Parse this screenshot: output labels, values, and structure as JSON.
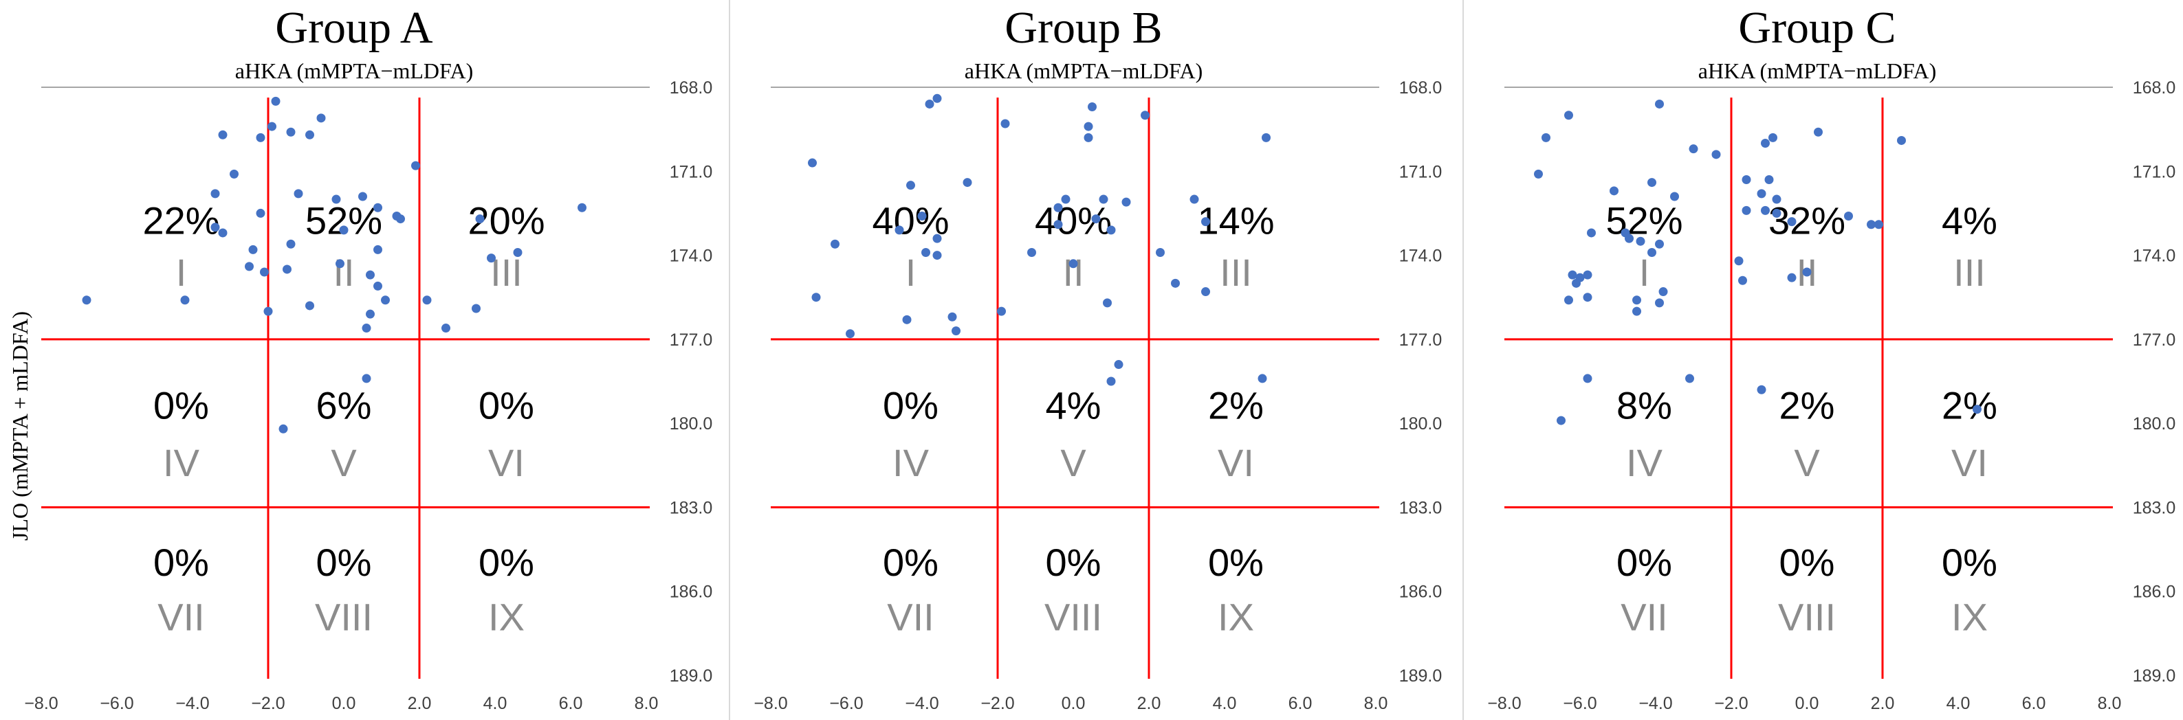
{
  "figure": {
    "ylabel": "JLO (mMPTA + mLDFA)"
  },
  "chart_data": [
    {
      "type": "scatter",
      "title": "Group A",
      "xlabel": "aHKA (mMPTA−mLDFA)",
      "xlim": [
        -8,
        8
      ],
      "ylim": [
        168,
        189
      ],
      "x_ticks": [
        "−8.0",
        "−6.0",
        "−4.0",
        "−2.0",
        "0.0",
        "2.0",
        "4.0",
        "6.0",
        "8.0"
      ],
      "y_ticks": [
        "168.0",
        "171.0",
        "174.0",
        "177.0",
        "180.0",
        "183.0",
        "186.0",
        "189.0"
      ],
      "divider_x": [
        -2,
        2
      ],
      "divider_y": [
        177,
        183
      ],
      "point_color": "#4472c4",
      "divider_color": "#ff0000",
      "zones": [
        {
          "percent": "22%",
          "roman": "I"
        },
        {
          "percent": "52%",
          "roman": "II"
        },
        {
          "percent": "20%",
          "roman": "III"
        },
        {
          "percent": "0%",
          "roman": "IV"
        },
        {
          "percent": "6%",
          "roman": "V"
        },
        {
          "percent": "0%",
          "roman": "VI"
        },
        {
          "percent": "0%",
          "roman": "VII"
        },
        {
          "percent": "0%",
          "roman": "VIII"
        },
        {
          "percent": "0%",
          "roman": "IX"
        }
      ],
      "points": [
        [
          -1.8,
          168.5
        ],
        [
          -1.9,
          169.4
        ],
        [
          -1.4,
          169.6
        ],
        [
          -0.9,
          169.7
        ],
        [
          -0.6,
          169.1
        ],
        [
          -3.2,
          169.7
        ],
        [
          -2.2,
          169.8
        ],
        [
          -2.9,
          171.1
        ],
        [
          1.9,
          170.8
        ],
        [
          -3.4,
          171.8
        ],
        [
          -1.2,
          171.8
        ],
        [
          -0.2,
          172.0
        ],
        [
          0.5,
          171.9
        ],
        [
          0.9,
          172.3
        ],
        [
          1.4,
          172.6
        ],
        [
          1.5,
          172.7
        ],
        [
          -2.2,
          172.5
        ],
        [
          -3.4,
          173.0
        ],
        [
          -3.2,
          173.2
        ],
        [
          -1.4,
          173.6
        ],
        [
          0.0,
          173.1
        ],
        [
          0.9,
          173.8
        ],
        [
          -2.4,
          173.8
        ],
        [
          3.6,
          172.7
        ],
        [
          6.3,
          172.3
        ],
        [
          3.9,
          174.1
        ],
        [
          4.6,
          173.9
        ],
        [
          -6.8,
          175.6
        ],
        [
          -4.2,
          175.6
        ],
        [
          -2.5,
          174.4
        ],
        [
          -2.1,
          174.6
        ],
        [
          -1.5,
          174.5
        ],
        [
          -0.1,
          174.3
        ],
        [
          0.7,
          174.7
        ],
        [
          0.9,
          175.1
        ],
        [
          1.1,
          175.6
        ],
        [
          0.7,
          176.1
        ],
        [
          -2.0,
          176.0
        ],
        [
          -0.9,
          175.8
        ],
        [
          0.6,
          176.6
        ],
        [
          2.2,
          175.6
        ],
        [
          2.7,
          176.6
        ],
        [
          3.5,
          175.9
        ],
        [
          0.6,
          178.4
        ],
        [
          -1.6,
          180.2
        ]
      ]
    },
    {
      "type": "scatter",
      "title": "Group B",
      "xlabel": "aHKA (mMPTA−mLDFA)",
      "xlim": [
        -8,
        8
      ],
      "ylim": [
        168,
        189
      ],
      "x_ticks": [
        "−8.0",
        "−6.0",
        "−4.0",
        "−2.0",
        "0.0",
        "2.0",
        "4.0",
        "6.0",
        "8.0"
      ],
      "y_ticks": [
        "168.0",
        "171.0",
        "174.0",
        "177.0",
        "180.0",
        "183.0",
        "186.0",
        "189.0"
      ],
      "divider_x": [
        -2,
        2
      ],
      "divider_y": [
        177,
        183
      ],
      "point_color": "#4472c4",
      "divider_color": "#ff0000",
      "zones": [
        {
          "percent": "40%",
          "roman": "I"
        },
        {
          "percent": "40%",
          "roman": "II"
        },
        {
          "percent": "14%",
          "roman": "III"
        },
        {
          "percent": "0%",
          "roman": "IV"
        },
        {
          "percent": "4%",
          "roman": "V"
        },
        {
          "percent": "2%",
          "roman": "VI"
        },
        {
          "percent": "0%",
          "roman": "VII"
        },
        {
          "percent": "0%",
          "roman": "VIII"
        },
        {
          "percent": "0%",
          "roman": "IX"
        }
      ],
      "points": [
        [
          -3.6,
          168.4
        ],
        [
          -3.8,
          168.6
        ],
        [
          0.5,
          168.7
        ],
        [
          1.9,
          169.0
        ],
        [
          0.4,
          169.4
        ],
        [
          0.4,
          169.8
        ],
        [
          -1.8,
          169.3
        ],
        [
          5.1,
          169.8
        ],
        [
          -6.9,
          170.7
        ],
        [
          -4.3,
          171.5
        ],
        [
          -2.8,
          171.4
        ],
        [
          0.8,
          172.0
        ],
        [
          -0.4,
          172.3
        ],
        [
          -0.2,
          172.0
        ],
        [
          1.4,
          172.1
        ],
        [
          3.2,
          172.0
        ],
        [
          0.6,
          172.7
        ],
        [
          1.0,
          173.1
        ],
        [
          -4.0,
          172.6
        ],
        [
          -3.6,
          173.4
        ],
        [
          -4.6,
          173.1
        ],
        [
          -6.3,
          173.6
        ],
        [
          -0.4,
          172.9
        ],
        [
          -3.9,
          173.9
        ],
        [
          -3.6,
          174.0
        ],
        [
          -1.1,
          173.9
        ],
        [
          0.0,
          174.3
        ],
        [
          2.3,
          173.9
        ],
        [
          3.5,
          172.8
        ],
        [
          2.7,
          175.0
        ],
        [
          3.5,
          175.3
        ],
        [
          0.9,
          175.7
        ],
        [
          -6.8,
          175.5
        ],
        [
          -4.4,
          176.3
        ],
        [
          -3.2,
          176.2
        ],
        [
          -3.1,
          176.7
        ],
        [
          -5.9,
          176.8
        ],
        [
          -1.9,
          176.0
        ],
        [
          1.2,
          177.9
        ],
        [
          1.0,
          178.5
        ],
        [
          5.0,
          178.4
        ]
      ]
    },
    {
      "type": "scatter",
      "title": "Group C",
      "xlabel": "aHKA (mMPTA−mLDFA)",
      "xlim": [
        -8,
        8
      ],
      "ylim": [
        168,
        189
      ],
      "x_ticks": [
        "−8.0",
        "−6.0",
        "−4.0",
        "−2.0",
        "0.0",
        "2.0",
        "4.0",
        "6.0",
        "8.0"
      ],
      "y_ticks": [
        "168.0",
        "171.0",
        "174.0",
        "177.0",
        "180.0",
        "183.0",
        "186.0",
        "189.0"
      ],
      "divider_x": [
        -2,
        2
      ],
      "divider_y": [
        177,
        183
      ],
      "point_color": "#4472c4",
      "divider_color": "#ff0000",
      "zones": [
        {
          "percent": "52%",
          "roman": "I"
        },
        {
          "percent": "32%",
          "roman": "II"
        },
        {
          "percent": "4%",
          "roman": "III"
        },
        {
          "percent": "8%",
          "roman": "IV"
        },
        {
          "percent": "2%",
          "roman": "V"
        },
        {
          "percent": "2%",
          "roman": "VI"
        },
        {
          "percent": "0%",
          "roman": "VII"
        },
        {
          "percent": "0%",
          "roman": "VIII"
        },
        {
          "percent": "0%",
          "roman": "IX"
        }
      ],
      "points": [
        [
          -3.9,
          168.6
        ],
        [
          -6.3,
          169.0
        ],
        [
          -6.9,
          169.8
        ],
        [
          -0.9,
          169.8
        ],
        [
          0.3,
          169.6
        ],
        [
          2.5,
          169.9
        ],
        [
          -3.0,
          170.2
        ],
        [
          -2.4,
          170.4
        ],
        [
          -1.1,
          170.0
        ],
        [
          -7.1,
          171.1
        ],
        [
          -5.1,
          171.7
        ],
        [
          -4.1,
          171.4
        ],
        [
          -3.5,
          171.9
        ],
        [
          -1.6,
          171.3
        ],
        [
          -1.0,
          171.3
        ],
        [
          -1.2,
          171.8
        ],
        [
          -0.8,
          172.0
        ],
        [
          -1.6,
          172.4
        ],
        [
          -1.1,
          172.4
        ],
        [
          -0.8,
          172.5
        ],
        [
          -0.4,
          172.8
        ],
        [
          -5.7,
          173.2
        ],
        [
          -4.8,
          173.2
        ],
        [
          -4.7,
          173.4
        ],
        [
          -4.4,
          173.5
        ],
        [
          -3.9,
          173.6
        ],
        [
          -4.1,
          173.9
        ],
        [
          1.1,
          172.6
        ],
        [
          1.7,
          172.9
        ],
        [
          1.9,
          172.9
        ],
        [
          -1.8,
          174.2
        ],
        [
          -6.2,
          174.7
        ],
        [
          -6.0,
          174.8
        ],
        [
          -5.8,
          174.7
        ],
        [
          -6.1,
          175.0
        ],
        [
          -1.7,
          174.9
        ],
        [
          -0.4,
          174.8
        ],
        [
          0.0,
          174.6
        ],
        [
          -6.3,
          175.6
        ],
        [
          -5.8,
          175.5
        ],
        [
          -4.5,
          175.6
        ],
        [
          -3.8,
          175.3
        ],
        [
          -3.9,
          175.7
        ],
        [
          -4.5,
          176.0
        ],
        [
          -5.8,
          178.4
        ],
        [
          -3.1,
          178.4
        ],
        [
          -1.2,
          178.8
        ],
        [
          -6.5,
          179.9
        ],
        [
          4.5,
          179.5
        ]
      ]
    }
  ]
}
